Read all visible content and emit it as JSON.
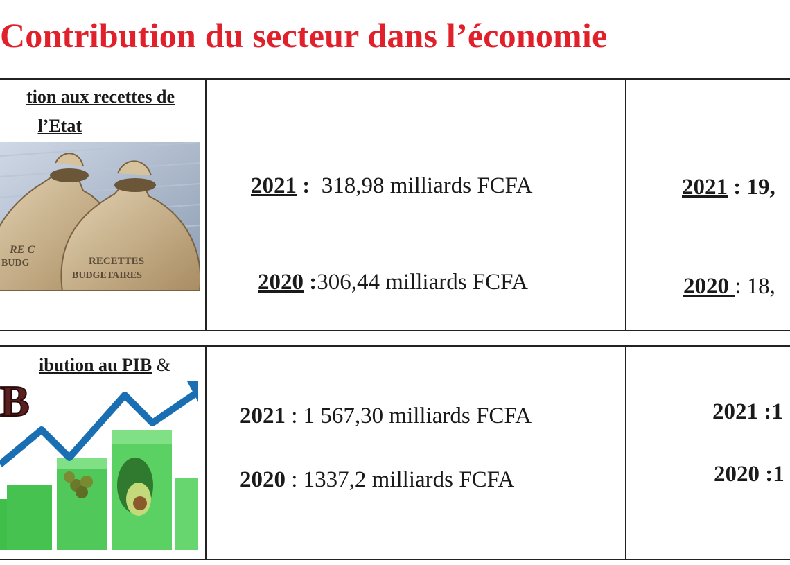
{
  "title": "Contribution du secteur dans l’économie",
  "row1": {
    "label_line1": "tion aux recettes de",
    "label_line2": "l’Etat",
    "image_text_1": "RECETTES BUDGETAIRES",
    "image_text_2": "RECETTES BUDGETAIRES",
    "col2": {
      "y2021_year": "2021",
      "y2021_sep": " :",
      "y2021_value": "318,98 milliards FCFA",
      "y2020_year": "2020",
      "y2020_sep": " :",
      "y2020_value": "306,44 milliards FCFA"
    },
    "col3": {
      "y2021_year": "2021",
      "y2021_rest": " : 19,",
      "y2020_year": "2020 ",
      "y2020_rest": ": 18,"
    }
  },
  "row2": {
    "label_main": "ibution au PIB",
    "label_amp": " &",
    "image_text": "B",
    "col2": {
      "y2021_year": "2021",
      "y2021_value": " : 1 567,30 milliards FCFA",
      "y2020_year": "2020",
      "y2020_value": " : 1337,2 milliards FCFA"
    },
    "col3": {
      "y2021": "2021 :1",
      "y2020": "2020 :1"
    }
  }
}
